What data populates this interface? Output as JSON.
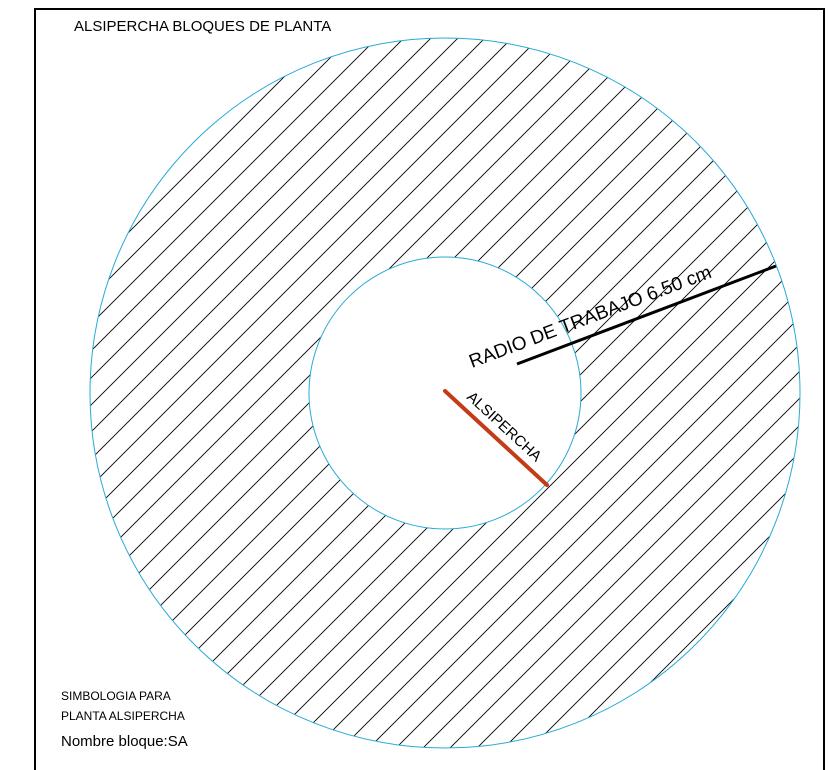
{
  "title": "ALSIPERCHA BLOQUES DE PLANTA",
  "radius_label": "RADIO DE TRABAJO 6.50 cm",
  "stem_label": "ALSIPERCHA",
  "legend": {
    "line1": "SIMBOLOGIA PARA",
    "line2": "PLANTA ALSIPERCHA",
    "block_name": "Nombre bloque:SA"
  },
  "colors": {
    "frame": "#000000",
    "circle_outline": "#29a9d6",
    "hatch": "#000000",
    "radius_line": "#000000",
    "stem_line": "#c43c17",
    "background": "#ffffff"
  }
}
